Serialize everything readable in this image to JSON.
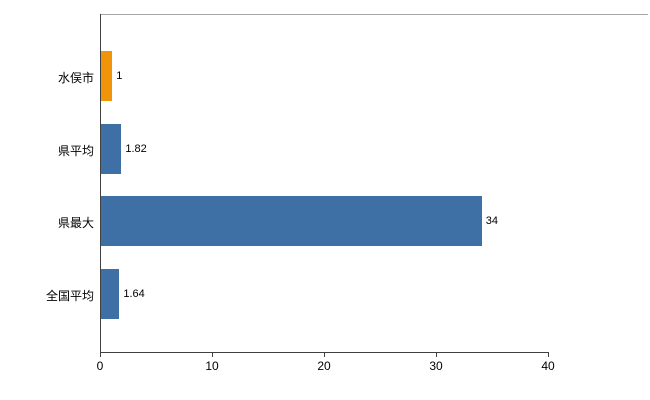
{
  "chart_data": {
    "type": "bar",
    "orientation": "horizontal",
    "title": "",
    "xlabel": "",
    "ylabel": "",
    "categories": [
      "水俣市",
      "県平均",
      "県最大",
      "全国平均"
    ],
    "values": [
      1,
      1.82,
      34,
      1.64
    ],
    "value_labels": [
      "1",
      "1.82",
      "34",
      "1.64"
    ],
    "bar_colors": [
      "#f0940a",
      "#3e6fa5",
      "#3e6fa5",
      "#3e6fa5"
    ],
    "xlim": [
      0,
      40
    ],
    "x_ticks": [
      0,
      10,
      20,
      30,
      40
    ],
    "grid": false,
    "legend_position": "none",
    "background_color": "#ffffff"
  }
}
